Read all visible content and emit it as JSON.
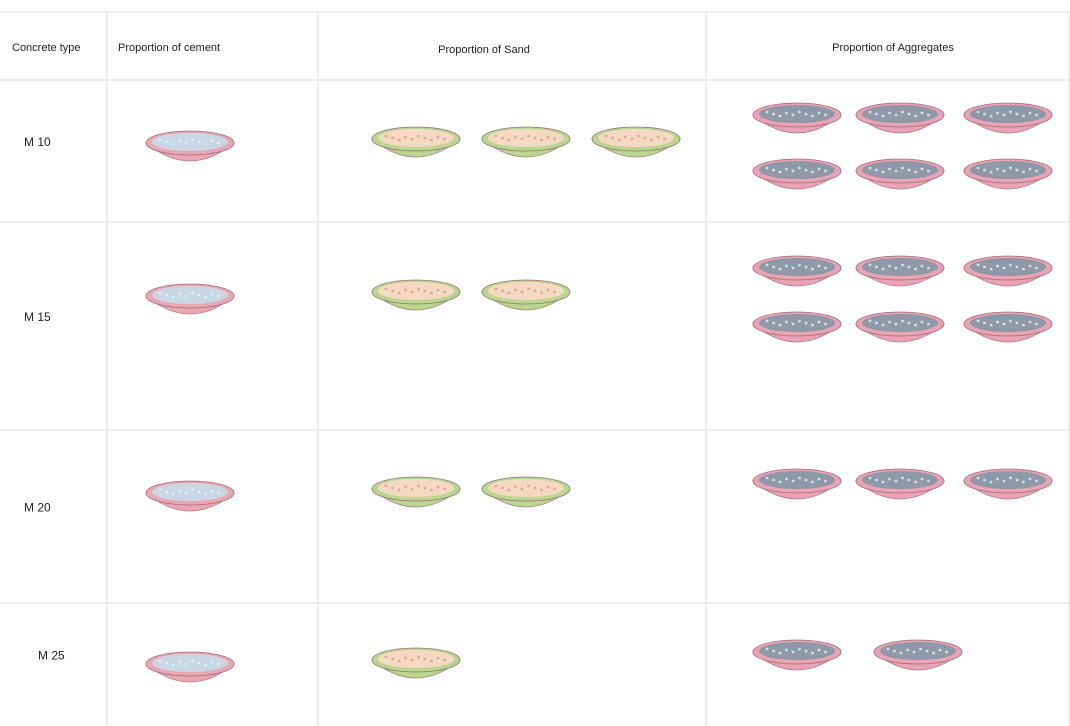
{
  "table": {
    "header": [
      "Concrete type",
      "Proportion of cement",
      "Proportion of Sand",
      "Proportion of Aggregates"
    ],
    "rows": [
      {
        "label": "M 10",
        "cement": 1,
        "sand": 3,
        "aggregates": 6
      },
      {
        "label": "M 15",
        "cement": 1,
        "sand": 2,
        "aggregates": 6
      },
      {
        "label": "M 20",
        "cement": 1,
        "sand": 2,
        "aggregates": 3
      },
      {
        "label": "M 25",
        "cement": 1,
        "sand": 1,
        "aggregates": 2
      }
    ]
  }
}
